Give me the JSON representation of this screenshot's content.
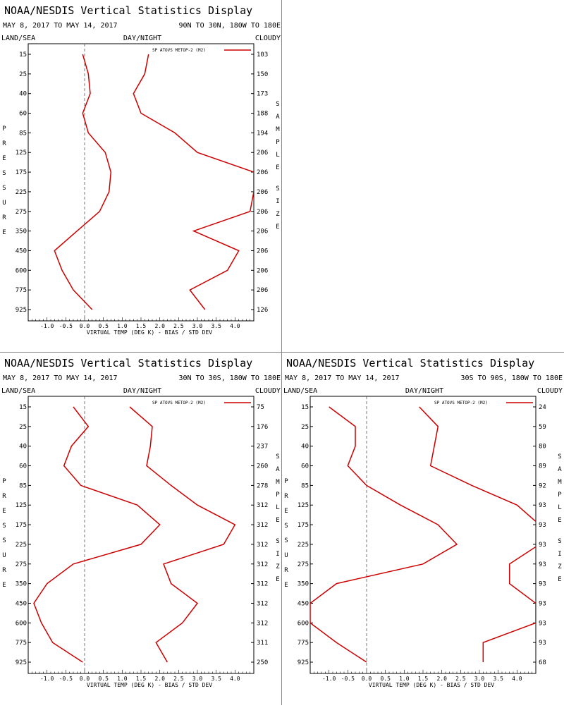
{
  "colors": {
    "series": "#cc0000",
    "axis": "#000000",
    "zero": "#555555"
  },
  "panels": [
    {
      "title": "NOAA/NESDIS Vertical Statistics Display",
      "date_range": "MAY 8, 2017 TO MAY 14, 2017",
      "region": "90N TO 30N, 180W TO 180E",
      "col_left": "LAND/SEA",
      "col_mid": "DAY/NIGHT",
      "col_right": "CLOUDY",
      "legend": "SP ATOVS METOP-2 (M2)",
      "left_axis_title": "PRESSURE",
      "right_axis_title": "SAMPLE SIZE",
      "xlabel": "VIRTUAL TEMP (DEG K) - BIAS / STD DEV",
      "pressure_levels": [
        "15",
        "25",
        "40",
        "60",
        "85",
        "125",
        "175",
        "225",
        "275",
        "350",
        "450",
        "600",
        "775",
        "925"
      ],
      "sample_sizes": [
        "103",
        "150",
        "173",
        "188",
        "194",
        "206",
        "206",
        "206",
        "206",
        "206",
        "206",
        "206",
        "206",
        "126"
      ],
      "x_ticks": [
        "-1.0",
        "-0.5",
        "0.0",
        "0.5",
        "1.0",
        "1.5",
        "2.0",
        "2.5",
        "3.0",
        "3.5",
        "4.0"
      ],
      "chart_data": {
        "type": "line",
        "xlim": [
          -1.5,
          4.5
        ],
        "bias": [
          -0.05,
          0.1,
          0.15,
          -0.05,
          0.1,
          0.55,
          0.7,
          0.65,
          0.4,
          -0.2,
          -0.8,
          -0.6,
          -0.3,
          0.2
        ],
        "std_dev": [
          1.7,
          1.6,
          1.3,
          1.5,
          2.4,
          3.0,
          4.5,
          4.5,
          4.4,
          2.9,
          4.1,
          3.8,
          2.8,
          3.2
        ]
      }
    },
    {
      "title": "NOAA/NESDIS Vertical Statistics Display",
      "date_range": "MAY 8, 2017 TO MAY 14, 2017",
      "region": "30N TO 30S, 180W TO 180E",
      "col_left": "LAND/SEA",
      "col_mid": "DAY/NIGHT",
      "col_right": "CLOUDY",
      "legend": "SP ATOVS METOP-2 (M2)",
      "left_axis_title": "PRESSURE",
      "right_axis_title": "SAMPLE SIZE",
      "xlabel": "VIRTUAL TEMP (DEG K) - BIAS / STD DEV",
      "pressure_levels": [
        "15",
        "25",
        "40",
        "60",
        "85",
        "125",
        "175",
        "225",
        "275",
        "350",
        "450",
        "600",
        "775",
        "925"
      ],
      "sample_sizes": [
        "75",
        "176",
        "237",
        "260",
        "278",
        "312",
        "312",
        "312",
        "312",
        "312",
        "312",
        "312",
        "311",
        "250"
      ],
      "x_ticks": [
        "-1.0",
        "-0.5",
        "0.0",
        "0.5",
        "1.0",
        "1.5",
        "2.0",
        "2.5",
        "3.0",
        "3.5",
        "4.0"
      ],
      "chart_data": {
        "type": "line",
        "xlim": [
          -1.5,
          4.5
        ],
        "bias": [
          -0.3,
          0.1,
          -0.35,
          -0.55,
          -0.1,
          1.4,
          2.0,
          1.5,
          -0.3,
          -1.0,
          -1.35,
          -1.15,
          -0.85,
          -0.05
        ],
        "std_dev": [
          1.2,
          1.8,
          1.75,
          1.65,
          2.3,
          3.0,
          4.0,
          3.7,
          2.1,
          2.3,
          3.0,
          2.6,
          1.9,
          2.2
        ]
      }
    },
    {
      "title": "NOAA/NESDIS Vertical Statistics Display",
      "date_range": "MAY 8, 2017 TO MAY 14, 2017",
      "region": "30S TO 90S, 180W TO 180E",
      "col_left": "LAND/SEA",
      "col_mid": "DAY/NIGHT",
      "col_right": "CLOUDY",
      "legend": "SP ATOVS METOP-2 (M2)",
      "left_axis_title": "PRESSURE",
      "right_axis_title": "SAMPLE SIZE",
      "xlabel": "VIRTUAL TEMP (DEG K) - BIAS / STD DEV",
      "pressure_levels": [
        "15",
        "25",
        "40",
        "60",
        "85",
        "125",
        "175",
        "225",
        "275",
        "350",
        "450",
        "600",
        "775",
        "925"
      ],
      "sample_sizes": [
        "24",
        "59",
        "80",
        "89",
        "92",
        "93",
        "93",
        "93",
        "93",
        "93",
        "93",
        "93",
        "93",
        "68"
      ],
      "x_ticks": [
        "-1.0",
        "-0.5",
        "0.0",
        "0.5",
        "1.0",
        "1.5",
        "2.0",
        "2.5",
        "3.0",
        "3.5",
        "4.0"
      ],
      "chart_data": {
        "type": "line",
        "xlim": [
          -1.5,
          4.5
        ],
        "bias": [
          -1.0,
          -0.3,
          -0.3,
          -0.5,
          0.0,
          0.9,
          1.9,
          2.4,
          1.5,
          -0.8,
          -1.5,
          -1.5,
          -0.8,
          0.0
        ],
        "std_dev": [
          1.4,
          1.9,
          1.8,
          1.7,
          2.8,
          4.0,
          4.6,
          4.6,
          3.8,
          3.8,
          4.5,
          4.5,
          3.1,
          3.1
        ]
      }
    }
  ]
}
